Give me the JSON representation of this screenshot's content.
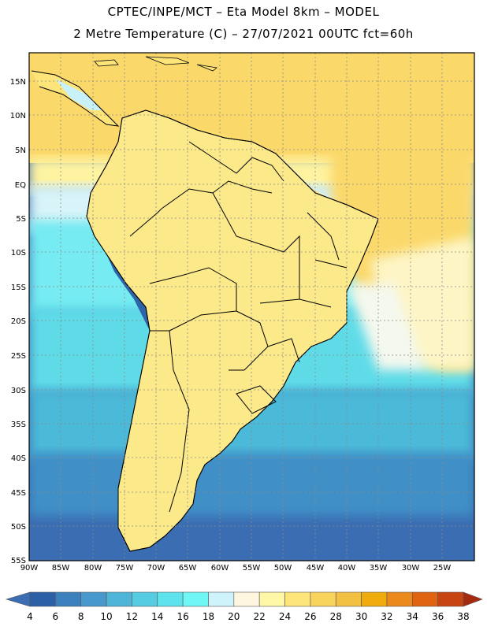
{
  "header": {
    "line1": "CPTEC/INPE/MCT –  Eta Model 8km – MODEL",
    "line2": "2 Metre Temperature (C) – 27/07/2021 00UTC fct=60h"
  },
  "map": {
    "lat_labels": [
      "15N",
      "10N",
      "5N",
      "EQ",
      "5S",
      "10S",
      "15S",
      "20S",
      "25S",
      "30S",
      "35S",
      "40S",
      "45S",
      "50S",
      "55S"
    ],
    "lon_labels": [
      "90W",
      "85W",
      "80W",
      "75W",
      "70W",
      "65W",
      "60W",
      "55W",
      "50W",
      "45W",
      "40W",
      "35W",
      "30W",
      "25W"
    ],
    "lon_range": [
      -90,
      -20
    ],
    "lat_range": [
      -55,
      19
    ],
    "grid": "dotted",
    "field": "2 Metre Temperature (C)"
  },
  "colorbar": {
    "levels": [
      "4",
      "6",
      "8",
      "10",
      "12",
      "14",
      "16",
      "18",
      "20",
      "22",
      "24",
      "26",
      "28",
      "30",
      "32",
      "34",
      "36",
      "38"
    ],
    "colors": [
      "#2d5fa6",
      "#3b7fbd",
      "#4798cc",
      "#4fb5d8",
      "#55cce2",
      "#5ee3ec",
      "#6ff7f6",
      "#cef3fb",
      "#fff6e0",
      "#fef7a6",
      "#fde57a",
      "#f9d45c",
      "#f3c142",
      "#efac0c",
      "#eb8a1a",
      "#df6310",
      "#c84410",
      "#b03010"
    ],
    "under_color": "#3a6db2",
    "over_color": "#a52a10"
  }
}
